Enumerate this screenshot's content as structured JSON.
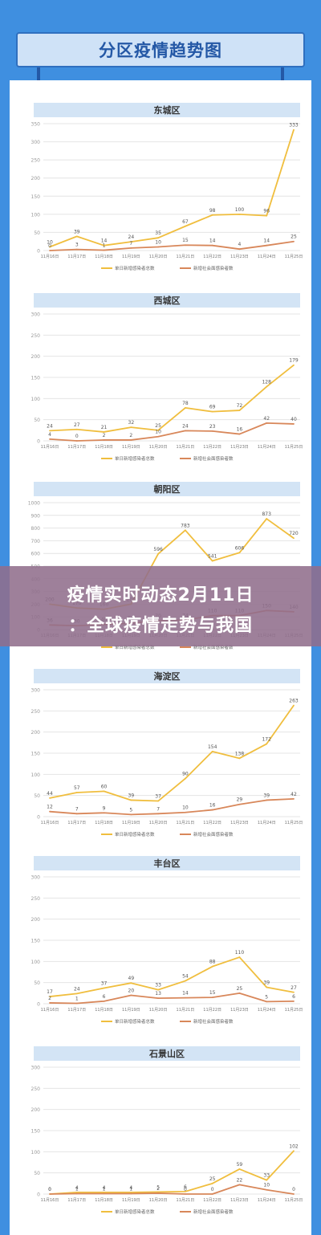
{
  "page": {
    "title": "分区疫情趋势图"
  },
  "banner": {
    "line1": "疫情实时动态2月11日",
    "line2": "：全球疫情走势与我国"
  },
  "colors": {
    "series1": "#f0be3e",
    "series2": "#d8875a",
    "grid": "#e4e4e4",
    "axis": "#999999",
    "title_bg": "#d3e4f5",
    "page_bg": "#3f8fe0"
  },
  "legend_labels": [
    "单日新增感染者总数",
    "新增社会面感染者数"
  ],
  "chart_data": [
    {
      "type": "line",
      "title": "东城区",
      "categories": [
        "11月16日",
        "11月17日",
        "11月18日",
        "11月19日",
        "11月20日",
        "11月21日",
        "11月22日",
        "11月23日",
        "11月24日",
        "11月25日"
      ],
      "ylim": [
        0,
        350
      ],
      "yticks": [
        0,
        50,
        100,
        150,
        200,
        250,
        300,
        350
      ],
      "series": [
        {
          "name": "单日新增感染者总数",
          "values": [
            10,
            39,
            14,
            24,
            35,
            67,
            98,
            100,
            96,
            333
          ]
        },
        {
          "name": "新增社会面感染者数",
          "values": [
            0,
            3,
            1,
            7,
            10,
            15,
            14,
            4,
            14,
            25
          ]
        }
      ]
    },
    {
      "type": "line",
      "title": "西城区",
      "categories": [
        "11月16日",
        "11月17日",
        "11月18日",
        "11月19日",
        "11月20日",
        "11月21日",
        "11月22日",
        "11月23日",
        "11月24日",
        "11月25日"
      ],
      "ylim": [
        0,
        300
      ],
      "yticks": [
        0,
        50,
        100,
        150,
        200,
        250,
        300
      ],
      "series": [
        {
          "name": "单日新增感染者总数",
          "values": [
            24,
            27,
            21,
            32,
            25,
            78,
            69,
            72,
            128,
            179
          ]
        },
        {
          "name": "新增社会面感染者数",
          "values": [
            4,
            0,
            2,
            2,
            10,
            24,
            23,
            16,
            42,
            40
          ]
        }
      ]
    },
    {
      "type": "line",
      "title": "朝阳区",
      "categories": [
        "11月16日",
        "11月17日",
        "11月18日",
        "11月19日",
        "11月20日",
        "11月21日",
        "11月22日",
        "11月23日",
        "11月24日",
        "11月25日"
      ],
      "ylim": [
        0,
        1000
      ],
      "yticks": [
        0,
        100,
        200,
        300,
        400,
        500,
        600,
        700,
        800,
        900,
        1000
      ],
      "series": [
        {
          "name": "单日新增感染者总数",
          "values": [
            200,
            170,
            160,
            200,
            596,
            783,
            541,
            606,
            873,
            720
          ]
        },
        {
          "name": "新增社会面感染者数",
          "values": [
            36,
            30,
            40,
            50,
            70,
            74,
            110,
            110,
            150,
            140
          ]
        }
      ]
    },
    {
      "type": "line",
      "title": "海淀区",
      "categories": [
        "11月16日",
        "11月17日",
        "11月18日",
        "11月19日",
        "11月20日",
        "11月21日",
        "11月22日",
        "11月23日",
        "11月24日",
        "11月25日"
      ],
      "ylim": [
        0,
        300
      ],
      "yticks": [
        0,
        50,
        100,
        150,
        200,
        250,
        300
      ],
      "series": [
        {
          "name": "单日新增感染者总数",
          "values": [
            44,
            57,
            60,
            39,
            37,
            90,
            154,
            138,
            172,
            263
          ]
        },
        {
          "name": "新增社会面感染者数",
          "values": [
            12,
            7,
            9,
            5,
            7,
            10,
            16,
            29,
            39,
            42
          ]
        }
      ]
    },
    {
      "type": "line",
      "title": "丰台区",
      "categories": [
        "11月16日",
        "11月17日",
        "11月18日",
        "11月19日",
        "11月20日",
        "11月21日",
        "11月22日",
        "11月23日",
        "11月24日",
        "11月25日"
      ],
      "ylim": [
        0,
        300
      ],
      "yticks": [
        0,
        50,
        100,
        150,
        200,
        250,
        300
      ],
      "series": [
        {
          "name": "单日新增感染者总数",
          "values": [
            17,
            24,
            37,
            49,
            33,
            54,
            88,
            110,
            39,
            27
          ]
        },
        {
          "name": "新增社会面感染者数",
          "values": [
            2,
            1,
            6,
            20,
            13,
            14,
            15,
            25,
            5,
            6
          ]
        }
      ]
    },
    {
      "type": "line",
      "title": "石景山区",
      "categories": [
        "11月16日",
        "11月17日",
        "11月18日",
        "11月19日",
        "11月20日",
        "11月21日",
        "11月22日",
        "11月23日",
        "11月24日",
        "11月25日"
      ],
      "ylim": [
        0,
        300
      ],
      "yticks": [
        0,
        50,
        100,
        150,
        200,
        250,
        300
      ],
      "series": [
        {
          "name": "单日新增感染者总数",
          "values": [
            0,
            4,
            4,
            4,
            5,
            6,
            25,
            59,
            33,
            102
          ]
        },
        {
          "name": "新增社会面感染者数",
          "values": [
            0,
            1,
            1,
            1,
            2,
            0,
            0,
            22,
            10,
            0
          ]
        }
      ]
    }
  ]
}
